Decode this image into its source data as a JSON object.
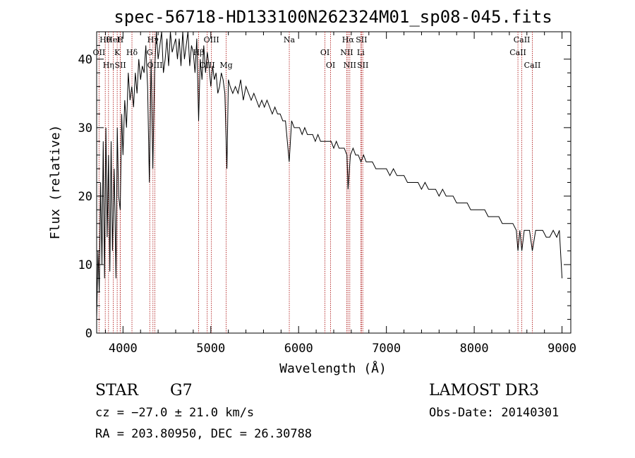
{
  "chart_data": {
    "type": "line",
    "title": "spec-56718-HD133100N262324M01_sp08-045.fits",
    "xlabel": "Wavelength (Å)",
    "ylabel": "Flux (relative)",
    "xlim": [
      3700,
      9100
    ],
    "ylim": [
      0,
      44
    ],
    "xticks": [
      4000,
      5000,
      6000,
      7000,
      8000,
      9000
    ],
    "yticks": [
      0,
      10,
      20,
      30,
      40
    ],
    "grid": false,
    "series": [
      {
        "name": "Flux",
        "x": [
          3700,
          3715,
          3730,
          3745,
          3760,
          3775,
          3790,
          3805,
          3820,
          3835,
          3850,
          3865,
          3880,
          3900,
          3920,
          3935,
          3950,
          3968,
          3985,
          4000,
          4020,
          4040,
          4060,
          4080,
          4100,
          4120,
          4140,
          4160,
          4180,
          4200,
          4220,
          4240,
          4260,
          4280,
          4300,
          4320,
          4340,
          4360,
          4380,
          4400,
          4420,
          4440,
          4460,
          4480,
          4500,
          4520,
          4540,
          4560,
          4580,
          4600,
          4620,
          4640,
          4660,
          4680,
          4700,
          4720,
          4740,
          4760,
          4780,
          4800,
          4820,
          4840,
          4861,
          4880,
          4900,
          4920,
          4940,
          4960,
          4980,
          5000,
          5020,
          5040,
          5060,
          5080,
          5100,
          5120,
          5140,
          5160,
          5183,
          5200,
          5220,
          5250,
          5280,
          5310,
          5340,
          5370,
          5400,
          5430,
          5460,
          5490,
          5520,
          5550,
          5580,
          5610,
          5640,
          5670,
          5700,
          5730,
          5760,
          5790,
          5820,
          5850,
          5893,
          5920,
          5950,
          5980,
          6010,
          6040,
          6070,
          6100,
          6130,
          6160,
          6190,
          6220,
          6250,
          6280,
          6310,
          6340,
          6370,
          6400,
          6430,
          6460,
          6490,
          6520,
          6550,
          6563,
          6590,
          6620,
          6650,
          6680,
          6710,
          6740,
          6770,
          6800,
          6840,
          6880,
          6920,
          6960,
          7000,
          7040,
          7080,
          7120,
          7160,
          7200,
          7240,
          7280,
          7320,
          7360,
          7400,
          7440,
          7480,
          7520,
          7560,
          7600,
          7640,
          7680,
          7720,
          7760,
          7800,
          7840,
          7880,
          7920,
          7960,
          8000,
          8040,
          8080,
          8120,
          8160,
          8200,
          8240,
          8280,
          8320,
          8360,
          8400,
          8440,
          8480,
          8498,
          8520,
          8542,
          8570,
          8600,
          8630,
          8662,
          8700,
          8740,
          8780,
          8820,
          8860,
          8900,
          8940,
          8970,
          9000
        ],
        "y": [
          2,
          12,
          6,
          22,
          10,
          28,
          8,
          30,
          14,
          26,
          9,
          28,
          12,
          24,
          8,
          30,
          20,
          18,
          32,
          26,
          34,
          30,
          38,
          34,
          36,
          33,
          38,
          35,
          40,
          37,
          39,
          38,
          42,
          36,
          22,
          40,
          24,
          38,
          44,
          40,
          42,
          44,
          38,
          40,
          43,
          39,
          44,
          41,
          42,
          43,
          40,
          43,
          39,
          44,
          40,
          42,
          44,
          39,
          42,
          41,
          38,
          43,
          31,
          40,
          37,
          42,
          38,
          41,
          39,
          36,
          39,
          37,
          38,
          35,
          36,
          38,
          37,
          35,
          24,
          37,
          36,
          35,
          36,
          35,
          37,
          34,
          36,
          35,
          34,
          35,
          34,
          33,
          34,
          33,
          34,
          33,
          32,
          33,
          32,
          32,
          31,
          31,
          25,
          31,
          30,
          30,
          30,
          29,
          30,
          29,
          29,
          29,
          28,
          29,
          28,
          28,
          28,
          28,
          28,
          27,
          28,
          27,
          27,
          27,
          26,
          21,
          26,
          27,
          26,
          26,
          25,
          26,
          25,
          25,
          25,
          24,
          24,
          24,
          24,
          23,
          24,
          23,
          23,
          23,
          22,
          22,
          22,
          22,
          21,
          22,
          21,
          21,
          21,
          20,
          21,
          20,
          20,
          20,
          19,
          19,
          19,
          19,
          18,
          18,
          18,
          18,
          18,
          17,
          17,
          17,
          17,
          16,
          16,
          16,
          16,
          15,
          12,
          15,
          12,
          15,
          15,
          15,
          12,
          15,
          15,
          15,
          14,
          14,
          15,
          14,
          15,
          8
        ]
      }
    ],
    "lines": [
      {
        "label": "Hθ",
        "x": 3798
      },
      {
        "label": "OII",
        "x": 3727
      },
      {
        "label": "Hη",
        "x": 3835
      },
      {
        "label": "HeI",
        "x": 3889
      },
      {
        "label": "K",
        "x": 3934
      },
      {
        "label": "SII",
        "x": 3970
      },
      {
        "label": "H",
        "x": 3968
      },
      {
        "label": "Hδ",
        "x": 4102
      },
      {
        "label": "OIII",
        "x": 4363
      },
      {
        "label": "Hγ",
        "x": 4341
      },
      {
        "label": "G",
        "x": 4305
      },
      {
        "label": "OIII",
        "x": 4959
      },
      {
        "label": "OIII",
        "x": 5007
      },
      {
        "label": "Hβ",
        "x": 4861
      },
      {
        "label": "Mg",
        "x": 5175
      },
      {
        "label": "Na",
        "x": 5894
      },
      {
        "label": "OI",
        "x": 6300
      },
      {
        "label": "OI",
        "x": 6364
      },
      {
        "label": "Hα",
        "x": 6563
      },
      {
        "label": "NII",
        "x": 6548
      },
      {
        "label": "NII",
        "x": 6583
      },
      {
        "label": "SII",
        "x": 6716
      },
      {
        "label": "Li",
        "x": 6708
      },
      {
        "label": "SII",
        "x": 6731
      },
      {
        "label": "CaII",
        "x": 8542
      },
      {
        "label": "CaII",
        "x": 8498
      },
      {
        "label": "CaII",
        "x": 8662
      }
    ]
  },
  "info": {
    "object_type": "STAR",
    "subclass": "G7",
    "survey": "LAMOST DR3",
    "redshift": "cz = −27.0 ± 21.0 km/s",
    "obs_date": "Obs-Date: 20140301",
    "coords": "RA = 203.80950, DEC =  26.30788"
  },
  "colors": {
    "line": "#000000",
    "marker": "#b22222"
  }
}
